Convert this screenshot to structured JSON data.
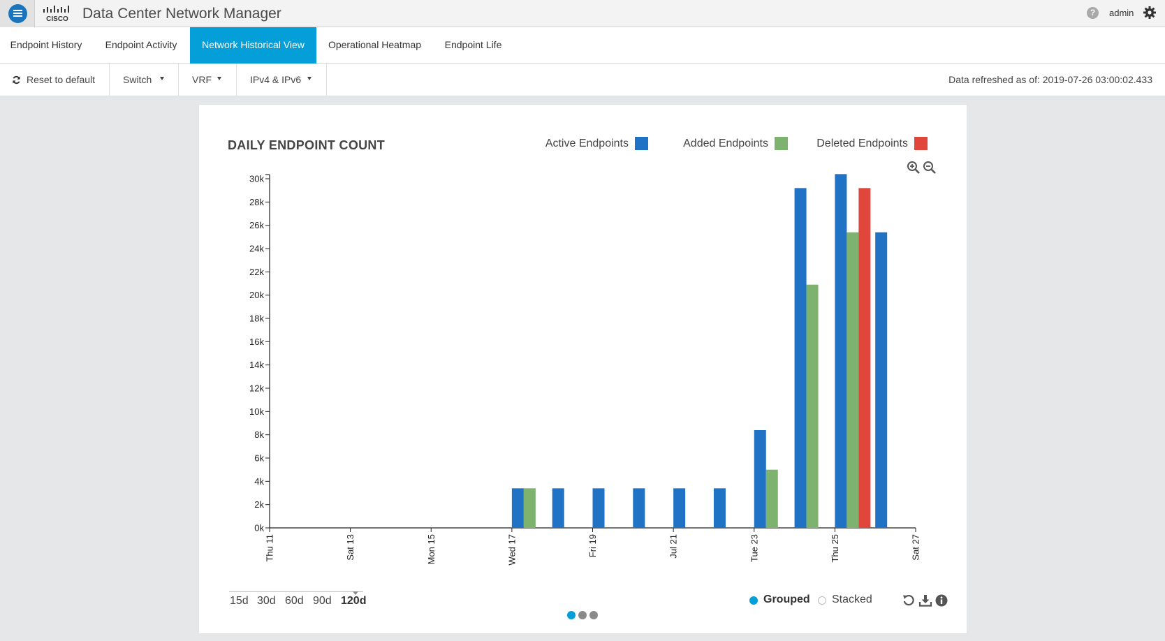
{
  "header": {
    "app_title": "Data Center Network Manager",
    "logo_text": "CISCO",
    "user": "admin",
    "help_glyph": "?"
  },
  "tabs": [
    {
      "label": "Endpoint History",
      "active": false
    },
    {
      "label": "Endpoint Activity",
      "active": false
    },
    {
      "label": "Network Historical View",
      "active": true
    },
    {
      "label": "Operational Heatmap",
      "active": false
    },
    {
      "label": "Endpoint Life",
      "active": false
    }
  ],
  "toolbar": {
    "reset_label": "Reset to default",
    "switch_label": "Switch",
    "vrf_label": "VRF",
    "ip_label": "IPv4 & IPv6",
    "refreshed": "Data refreshed as of: 2019-07-26 03:00:02.433"
  },
  "colors": {
    "accent": "#049fd9",
    "active": "#1f72c4",
    "added": "#7db36e",
    "deleted": "#e0463c"
  },
  "chart_data": {
    "type": "bar",
    "title": "DAILY ENDPOINT COUNT",
    "xlabel": "",
    "ylabel": "",
    "ylim": [
      0,
      30000
    ],
    "y_ticks": [
      0,
      2000,
      4000,
      6000,
      8000,
      10000,
      12000,
      14000,
      16000,
      18000,
      20000,
      22000,
      24000,
      26000,
      28000,
      30000
    ],
    "y_tick_labels": [
      "0k",
      "2k",
      "4k",
      "6k",
      "8k",
      "10k",
      "12k",
      "14k",
      "16k",
      "18k",
      "20k",
      "22k",
      "24k",
      "26k",
      "28k",
      "30k"
    ],
    "x_range": [
      "2019-07-11",
      "2019-07-27"
    ],
    "x_ticks": [
      "Thu 11",
      "Sat 13",
      "Mon 15",
      "Wed 17",
      "Fri 19",
      "Jul 21",
      "Tue 23",
      "Thu 25",
      "Sat 27"
    ],
    "legend": [
      "Active Endpoints",
      "Added Endpoints",
      "Deleted Endpoints"
    ],
    "mode": "grouped",
    "bars": [
      {
        "date": "2019-07-17",
        "active": 3400,
        "added": 3400,
        "deleted": 0
      },
      {
        "date": "2019-07-18",
        "active": 3400,
        "added": 0,
        "deleted": 0
      },
      {
        "date": "2019-07-19",
        "active": 3400,
        "added": 0,
        "deleted": 0
      },
      {
        "date": "2019-07-20",
        "active": 3400,
        "added": 0,
        "deleted": 0
      },
      {
        "date": "2019-07-21",
        "active": 3400,
        "added": 0,
        "deleted": 0
      },
      {
        "date": "2019-07-22",
        "active": 3400,
        "added": 0,
        "deleted": 0
      },
      {
        "date": "2019-07-23",
        "active": 8400,
        "added": 5000,
        "deleted": 0
      },
      {
        "date": "2019-07-24",
        "active": 29200,
        "added": 20900,
        "deleted": 0
      },
      {
        "date": "2019-07-25",
        "active": 30400,
        "added": 25400,
        "deleted": 29200
      },
      {
        "date": "2019-07-26",
        "active": 25400,
        "added": 0,
        "deleted": 0
      }
    ]
  },
  "chart_controls": {
    "ranges": [
      "15d",
      "30d",
      "60d",
      "90d",
      "120d"
    ],
    "selected_range": "120d",
    "grouped_label": "Grouped",
    "stacked_label": "Stacked",
    "page_count": 3,
    "current_page": 1
  }
}
